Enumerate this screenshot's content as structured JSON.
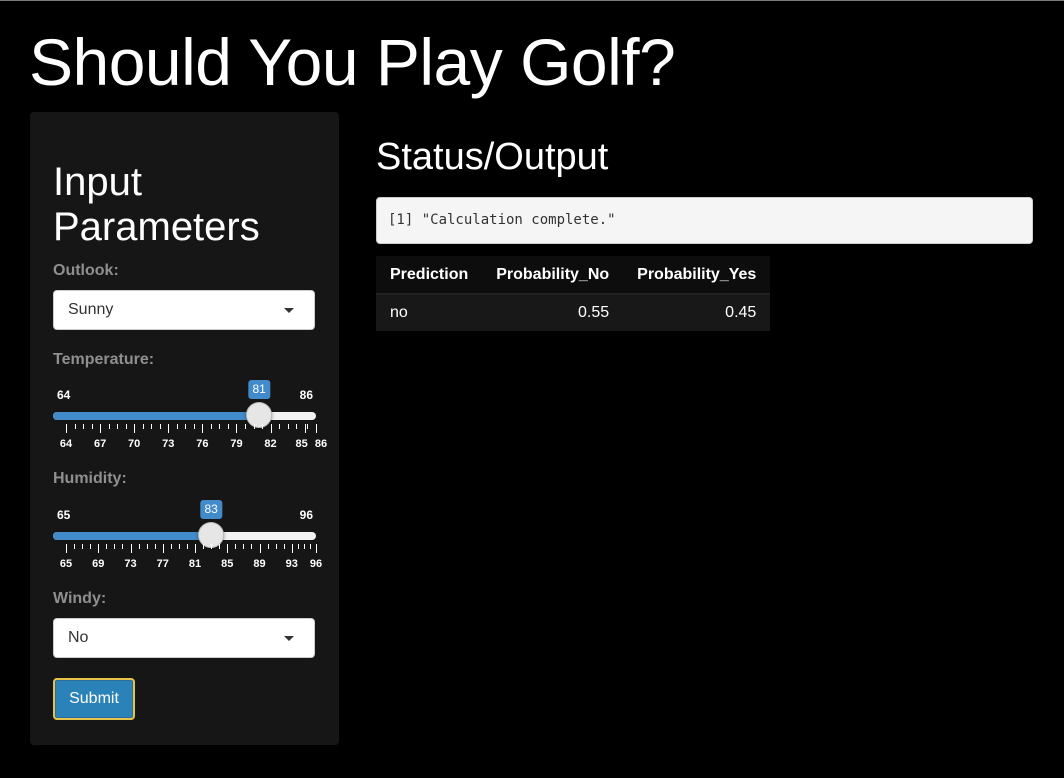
{
  "page": {
    "title": "Should You Play Golf?"
  },
  "sidebar": {
    "heading": "Input Parameters",
    "outlook": {
      "label": "Outlook:",
      "value": "Sunny"
    },
    "temperature": {
      "label": "Temperature:",
      "min": 64,
      "max": 86,
      "value": 81,
      "min_label": "64",
      "max_label": "86",
      "value_label": "81",
      "tick_labels": [
        "64",
        "67",
        "70",
        "73",
        "76",
        "79",
        "82",
        "85",
        "86"
      ]
    },
    "humidity": {
      "label": "Humidity:",
      "min": 65,
      "max": 96,
      "value": 83,
      "min_label": "65",
      "max_label": "96",
      "value_label": "83",
      "tick_labels": [
        "65",
        "69",
        "73",
        "77",
        "81",
        "85",
        "89",
        "93",
        "96"
      ]
    },
    "windy": {
      "label": "Windy:",
      "value": "No"
    },
    "submit_label": "Submit"
  },
  "output": {
    "title": "Status/Output",
    "status": "[1] \"Calculation complete.\"",
    "table": {
      "headers": [
        "Prediction",
        "Probability_No",
        "Probability_Yes"
      ],
      "rows": [
        [
          "no",
          "0.55",
          "0.45"
        ]
      ]
    }
  },
  "colors": {
    "accent": "#428bca",
    "button": "#2a82b8",
    "button_border": "#e6c34a"
  }
}
